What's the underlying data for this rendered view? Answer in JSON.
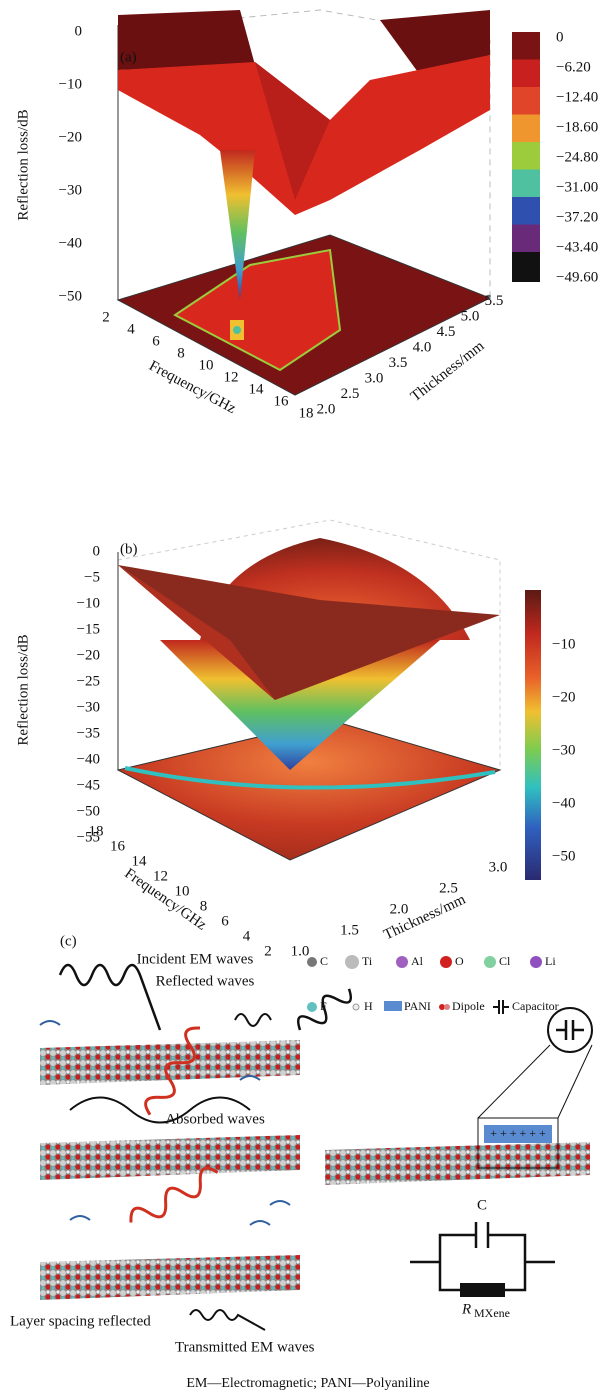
{
  "panel_a": {
    "label": "(a)",
    "z_label": "Reflection loss/dB",
    "z_ticks": [
      "0",
      "−10",
      "−20",
      "−30",
      "−40",
      "−50"
    ],
    "x_label": "Frequency/GHz",
    "x_ticks": [
      "2",
      "4",
      "6",
      "8",
      "10",
      "12",
      "14",
      "16",
      "18"
    ],
    "y_label": "Thickness/mm",
    "y_ticks": [
      "2.0",
      "2.5",
      "3.0",
      "3.5",
      "4.0",
      "4.5",
      "5.0",
      "5.5"
    ],
    "colorbar_ticks": [
      "0",
      "−6.20",
      "−12.40",
      "−18.60",
      "−24.80",
      "−31.00",
      "−37.20",
      "−43.40",
      "−49.60"
    ]
  },
  "panel_b": {
    "label": "(b)",
    "z_label": "Reflection loss/dB",
    "z_ticks": [
      "0",
      "−5",
      "−10",
      "−15",
      "−20",
      "−25",
      "−30",
      "−35",
      "−40",
      "−45",
      "−50",
      "−55"
    ],
    "x_label": "Frequency/GHz",
    "x_ticks": [
      "18",
      "16",
      "14",
      "12",
      "10",
      "8",
      "6",
      "4",
      "2"
    ],
    "y_label": "Thickness/mm",
    "y_ticks": [
      "1.0",
      "1.5",
      "2.0",
      "2.5",
      "3.0"
    ],
    "colorbar_ticks": [
      "−10",
      "−20",
      "−30",
      "−40",
      "−50"
    ]
  },
  "panel_c": {
    "label": "(c)",
    "annotations": [
      "Incident EM waves",
      "Reflected waves",
      "Absorbed waves",
      "Layer spacing reflected",
      "Transmitted EM waves"
    ],
    "legend": [
      "C",
      "Ti",
      "Al",
      "O",
      "Cl",
      "Li",
      "F",
      "H",
      "PANI",
      "Dipole",
      "Capacitor"
    ],
    "circuit": {
      "capacitor": "C",
      "resistor": "R",
      "resistor_subscript": "MXene"
    }
  },
  "caption": "EM—Electromagnetic; PANI—Polyaniline"
}
